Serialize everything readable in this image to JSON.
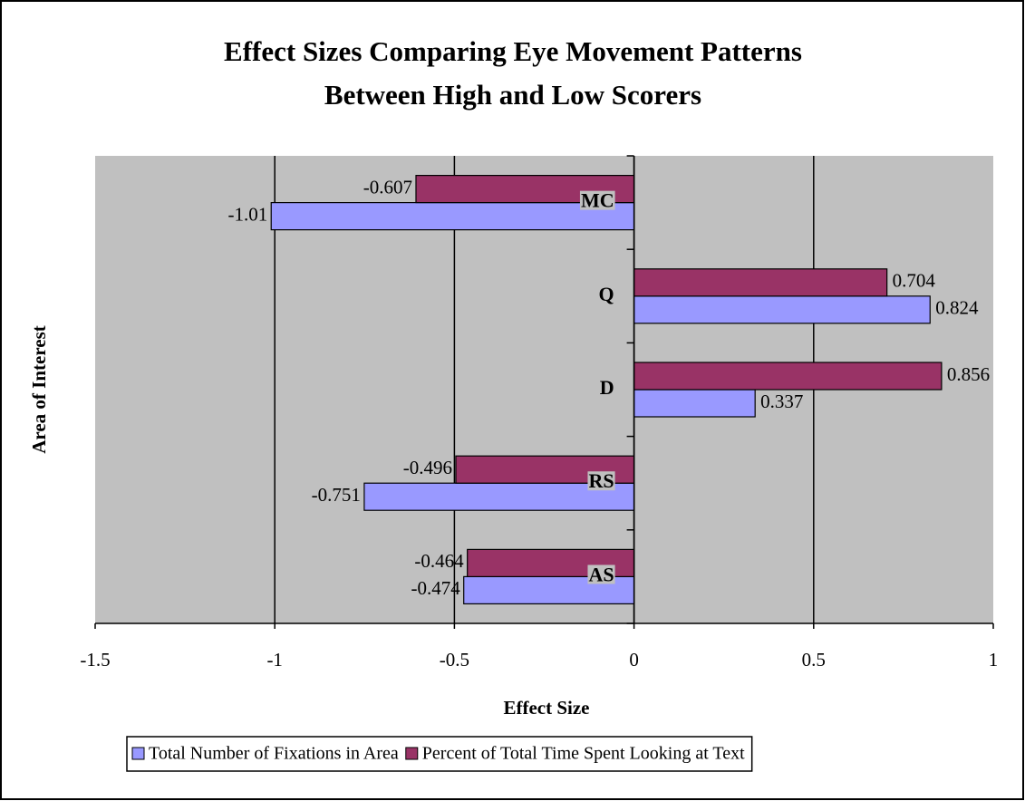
{
  "chart_data": {
    "type": "bar",
    "orientation": "horizontal",
    "title": [
      "Effect Sizes Comparing Eye Movement Patterns",
      "Between High and Low Scorers"
    ],
    "x_label": "Effect Size",
    "y_label": "Area of Interest",
    "categories": [
      "MC",
      "Q",
      "D",
      "RS",
      "AS"
    ],
    "series": [
      {
        "name": "Total Number of Fixations in Area",
        "color": "#9999ff",
        "values": [
          -1.01,
          0.824,
          0.337,
          -0.751,
          -0.474
        ]
      },
      {
        "name": "Percent of Total Time Spent Looking at Text",
        "color": "#993366",
        "values": [
          -0.607,
          0.704,
          0.856,
          -0.496,
          -0.464
        ]
      }
    ],
    "xlim": [
      -1.5,
      1
    ],
    "xticks": [
      -1.5,
      -1,
      -0.5,
      0,
      0.5,
      1
    ],
    "grid": true,
    "plot_background": "#c0c0c0",
    "legend": "bottom"
  }
}
